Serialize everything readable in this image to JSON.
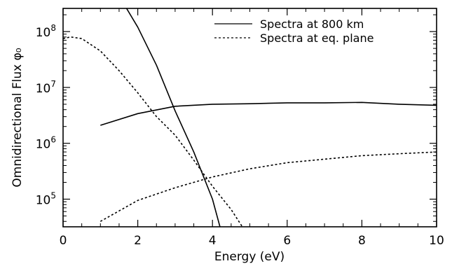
{
  "chart_data": {
    "type": "line",
    "title": "",
    "xlabel": "Energy (eV)",
    "ylabel": "Omnidirectional Flux φ₀",
    "x_scale": "linear",
    "y_scale": "log",
    "xlim": [
      0,
      10
    ],
    "ylim": [
      32000,
      260000000
    ],
    "grid": false,
    "legend_position": "top-right",
    "x_ticks": [
      {
        "value": 0,
        "label": "0"
      },
      {
        "value": 2,
        "label": "2"
      },
      {
        "value": 4,
        "label": "4"
      },
      {
        "value": 6,
        "label": "6"
      },
      {
        "value": 8,
        "label": "8"
      },
      {
        "value": 10,
        "label": "10"
      }
    ],
    "y_ticks": [
      {
        "value": 100000,
        "base": "10",
        "exp": "5"
      },
      {
        "value": 1000000,
        "base": "10",
        "exp": "6"
      },
      {
        "value": 10000000,
        "base": "10",
        "exp": "7"
      },
      {
        "value": 100000000,
        "base": "10",
        "exp": "8"
      }
    ],
    "legend": [
      {
        "label": "Spectra at 800 km",
        "style": "solid"
      },
      {
        "label": "Spectra at eq. plane",
        "style": "dashed"
      }
    ],
    "series": [
      {
        "style": "solid",
        "points": [
          [
            1.0,
            2100000
          ],
          [
            2.0,
            3400000
          ],
          [
            3.0,
            4600000
          ],
          [
            4.0,
            5000000
          ],
          [
            5.0,
            5100000
          ],
          [
            6.0,
            5300000
          ],
          [
            7.0,
            5300000
          ],
          [
            8.0,
            5400000
          ],
          [
            9.0,
            5000000
          ],
          [
            10.0,
            4800000
          ]
        ]
      },
      {
        "style": "solid",
        "points": [
          [
            1.7,
            260000000
          ],
          [
            2.0,
            120000000
          ],
          [
            2.5,
            25000000
          ],
          [
            3.0,
            3800000
          ],
          [
            3.5,
            700000
          ],
          [
            4.0,
            100000
          ],
          [
            4.2,
            32000
          ]
        ]
      },
      {
        "style": "dashed",
        "points": [
          [
            0.0,
            75000000
          ],
          [
            0.2,
            80000000
          ],
          [
            0.5,
            75000000
          ],
          [
            1.0,
            45000000
          ],
          [
            1.5,
            20000000
          ],
          [
            2.0,
            8000000
          ],
          [
            2.5,
            3000000
          ],
          [
            3.0,
            1400000
          ],
          [
            3.5,
            500000
          ],
          [
            4.0,
            170000
          ],
          [
            4.5,
            65000
          ],
          [
            4.8,
            32000
          ]
        ]
      },
      {
        "style": "dashed",
        "points": [
          [
            1.0,
            40000
          ],
          [
            2.0,
            95000
          ],
          [
            3.0,
            160000
          ],
          [
            4.0,
            250000
          ],
          [
            5.0,
            350000
          ],
          [
            6.0,
            450000
          ],
          [
            7.0,
            520000
          ],
          [
            8.0,
            600000
          ],
          [
            9.0,
            650000
          ],
          [
            10.0,
            700000
          ]
        ]
      }
    ]
  }
}
